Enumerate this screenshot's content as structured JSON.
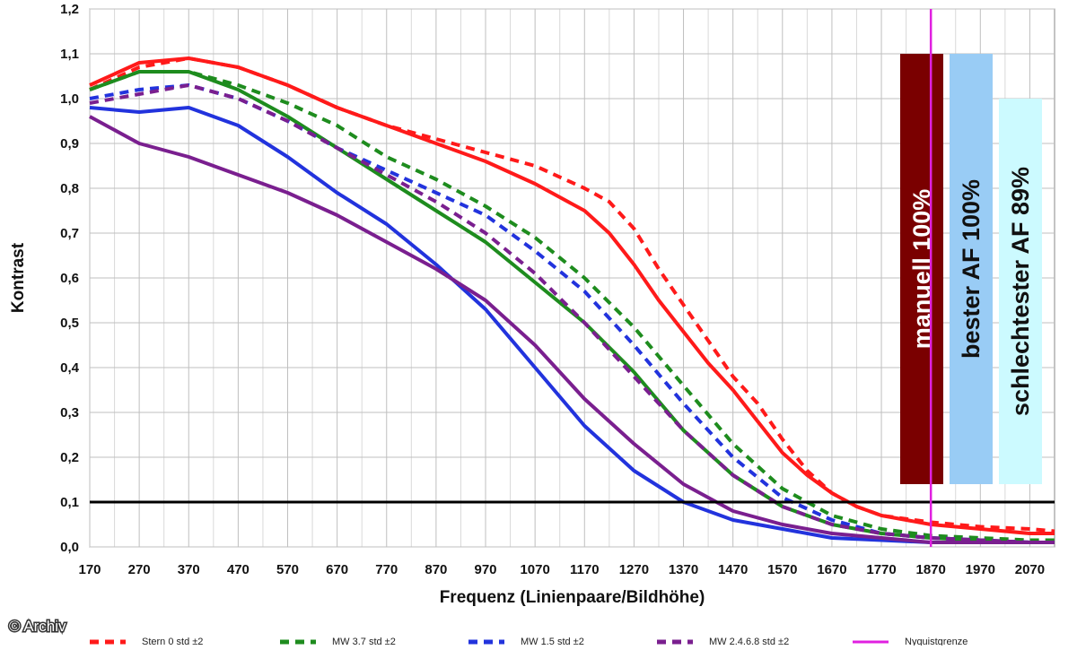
{
  "chart_data": {
    "type": "line",
    "title": "",
    "xlabel": "Frequenz (Linienpaare/Bildhöhe)",
    "ylabel": "Kontrast",
    "xlim": [
      170,
      2120
    ],
    "ylim": [
      0.0,
      1.2
    ],
    "x_ticks": [
      "170",
      "270",
      "370",
      "470",
      "570",
      "670",
      "770",
      "870",
      "970",
      "1070",
      "1170",
      "1270",
      "1370",
      "1470",
      "1570",
      "1670",
      "1770",
      "1870",
      "1970",
      "2070"
    ],
    "y_ticks": [
      "0,0",
      "0,1",
      "0,2",
      "0,3",
      "0,4",
      "0,5",
      "0,6",
      "0,7",
      "0,8",
      "0,9",
      "1,0",
      "1,1",
      "1,2"
    ],
    "grid": true,
    "threshold_line": 0.1,
    "nyquist_x": 1870,
    "series": [
      {
        "name": "Stern 0 std ±2",
        "color": "#ff1a1a",
        "dash": true,
        "x": [
          170,
          270,
          370,
          470,
          570,
          670,
          770,
          870,
          970,
          1070,
          1170,
          1220,
          1270,
          1320,
          1370,
          1420,
          1470,
          1520,
          1570,
          1620,
          1670,
          1720,
          1770,
          1870,
          1970,
          2070,
          2120
        ],
        "y": [
          1.02,
          1.07,
          1.09,
          1.07,
          1.03,
          0.98,
          0.94,
          0.91,
          0.88,
          0.85,
          0.8,
          0.77,
          0.71,
          0.62,
          0.54,
          0.46,
          0.38,
          0.32,
          0.24,
          0.17,
          0.12,
          0.09,
          0.07,
          0.055,
          0.045,
          0.04,
          0.035
        ]
      },
      {
        "name": "",
        "color": "#ff1a1a",
        "dash": false,
        "x": [
          170,
          270,
          370,
          470,
          570,
          670,
          770,
          870,
          970,
          1070,
          1170,
          1220,
          1270,
          1320,
          1370,
          1420,
          1470,
          1520,
          1570,
          1620,
          1670,
          1720,
          1770,
          1870,
          1970,
          2070,
          2120
        ],
        "y": [
          1.03,
          1.08,
          1.09,
          1.07,
          1.03,
          0.98,
          0.94,
          0.9,
          0.86,
          0.81,
          0.75,
          0.7,
          0.63,
          0.55,
          0.48,
          0.41,
          0.35,
          0.28,
          0.21,
          0.16,
          0.12,
          0.09,
          0.07,
          0.05,
          0.04,
          0.03,
          0.03
        ]
      },
      {
        "name": "MW 3.7 std ±2",
        "color": "#1e8c1e",
        "dash": true,
        "x": [
          170,
          270,
          370,
          470,
          570,
          670,
          770,
          870,
          970,
          1070,
          1170,
          1270,
          1370,
          1470,
          1570,
          1670,
          1770,
          1870,
          1970,
          2070,
          2120
        ],
        "y": [
          1.02,
          1.06,
          1.06,
          1.03,
          0.99,
          0.94,
          0.87,
          0.82,
          0.76,
          0.69,
          0.6,
          0.49,
          0.36,
          0.23,
          0.13,
          0.07,
          0.04,
          0.025,
          0.02,
          0.015,
          0.015
        ]
      },
      {
        "name": "",
        "color": "#1e8c1e",
        "dash": false,
        "x": [
          170,
          270,
          370,
          470,
          570,
          670,
          770,
          870,
          970,
          1070,
          1170,
          1270,
          1370,
          1470,
          1570,
          1670,
          1770,
          1870,
          1970,
          2070,
          2120
        ],
        "y": [
          1.02,
          1.06,
          1.06,
          1.02,
          0.96,
          0.89,
          0.82,
          0.75,
          0.68,
          0.59,
          0.5,
          0.39,
          0.26,
          0.16,
          0.09,
          0.05,
          0.03,
          0.02,
          0.015,
          0.01,
          0.01
        ]
      },
      {
        "name": "MW 1.5 std ±2",
        "color": "#2233dd",
        "dash": true,
        "x": [
          170,
          270,
          370,
          470,
          570,
          670,
          770,
          870,
          970,
          1070,
          1170,
          1270,
          1370,
          1470,
          1570,
          1670,
          1770,
          1870,
          1970,
          2070,
          2120
        ],
        "y": [
          1.0,
          1.02,
          1.03,
          1.0,
          0.95,
          0.89,
          0.84,
          0.79,
          0.74,
          0.66,
          0.57,
          0.45,
          0.32,
          0.2,
          0.11,
          0.06,
          0.03,
          0.02,
          0.015,
          0.01,
          0.01
        ]
      },
      {
        "name": "",
        "color": "#2233dd",
        "dash": false,
        "x": [
          170,
          270,
          370,
          470,
          570,
          670,
          770,
          870,
          970,
          1070,
          1170,
          1270,
          1370,
          1470,
          1570,
          1670,
          1770,
          1870,
          1970,
          2070,
          2120
        ],
        "y": [
          0.98,
          0.97,
          0.98,
          0.94,
          0.87,
          0.79,
          0.72,
          0.63,
          0.53,
          0.4,
          0.27,
          0.17,
          0.1,
          0.06,
          0.04,
          0.02,
          0.015,
          0.01,
          0.01,
          0.01,
          0.01
        ]
      },
      {
        "name": "MW 2.4.6.8 std ±2",
        "color": "#7a1f8f",
        "dash": true,
        "x": [
          170,
          270,
          370,
          470,
          570,
          670,
          770,
          870,
          970,
          1070,
          1170,
          1270,
          1370,
          1470,
          1570,
          1670,
          1770,
          1870,
          1970,
          2070,
          2120
        ],
        "y": [
          0.99,
          1.01,
          1.03,
          1.0,
          0.95,
          0.89,
          0.83,
          0.77,
          0.7,
          0.61,
          0.5,
          0.38,
          0.26,
          0.16,
          0.09,
          0.05,
          0.03,
          0.02,
          0.015,
          0.01,
          0.01
        ]
      },
      {
        "name": "",
        "color": "#7a1f8f",
        "dash": false,
        "x": [
          170,
          270,
          370,
          470,
          570,
          670,
          770,
          870,
          970,
          1070,
          1170,
          1270,
          1370,
          1470,
          1570,
          1670,
          1770,
          1870,
          1970,
          2070,
          2120
        ],
        "y": [
          0.96,
          0.9,
          0.87,
          0.83,
          0.79,
          0.74,
          0.68,
          0.62,
          0.55,
          0.45,
          0.33,
          0.23,
          0.14,
          0.08,
          0.05,
          0.03,
          0.02,
          0.01,
          0.01,
          0.01,
          0.01
        ]
      }
    ],
    "nyquist_label": "Nyquistgrenze",
    "bars": [
      {
        "label": "manuell 100%",
        "value": 1.1,
        "color": "#7a0000",
        "text_color": "#ffffff"
      },
      {
        "label": "bester AF 100%",
        "value": 1.1,
        "color": "#99ccf5",
        "text_color": "#111111"
      },
      {
        "label": "schlechtester AF 89%",
        "value": 1.0,
        "color": "#ccfaff",
        "text_color": "#111111"
      }
    ],
    "credit": "© Archiv"
  }
}
